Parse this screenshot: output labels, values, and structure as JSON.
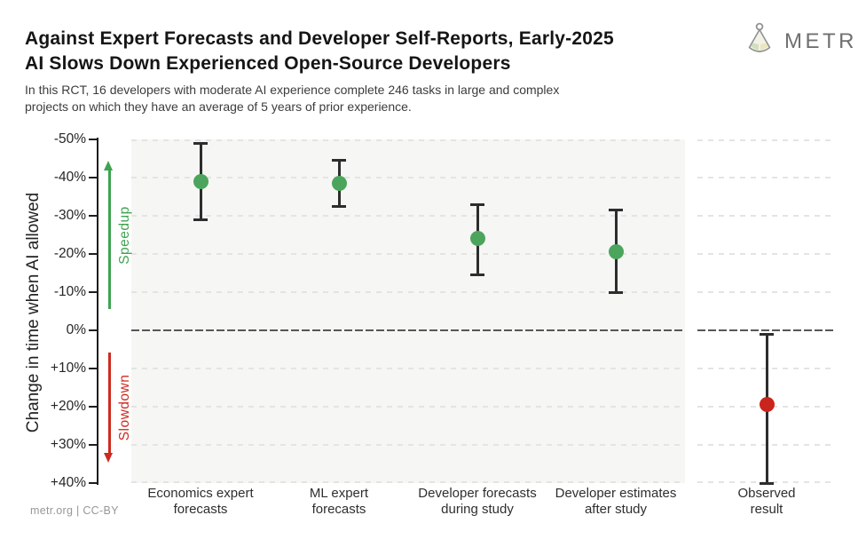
{
  "header": {
    "title_lines": [
      "Against Expert Forecasts and Developer Self-Reports, Early-2025",
      "AI Slows Down Experienced Open-Source Developers"
    ],
    "subtitle_lines": [
      "In this RCT, 16 developers with moderate AI experience complete 246 tasks in large and complex",
      "projects on which they have an average of 5 years of prior experience."
    ],
    "logo_text": "METR"
  },
  "footer": {
    "credit": "metr.org  |  CC-BY"
  },
  "chart_data": {
    "type": "scatter",
    "title": "Against Expert Forecasts and Developer Self-Reports, Early-2025 AI Slows Down Experienced Open-Source Developers",
    "ylabel": "Change in time when AI allowed",
    "unit": "% change in time when AI allowed",
    "ylim_top_to_bottom": [
      -50,
      40
    ],
    "grid": true,
    "y_ticks": [
      {
        "value": -50,
        "label": "-50%"
      },
      {
        "value": -40,
        "label": "-40%"
      },
      {
        "value": -30,
        "label": "-30%"
      },
      {
        "value": -20,
        "label": "-20%"
      },
      {
        "value": -10,
        "label": "-10%"
      },
      {
        "value": 0,
        "label": "0%"
      },
      {
        "value": 10,
        "label": "+10%"
      },
      {
        "value": 20,
        "label": "+20%"
      },
      {
        "value": 30,
        "label": "+30%"
      },
      {
        "value": 40,
        "label": "+40%"
      }
    ],
    "annotations": [
      {
        "text": "Speedup",
        "direction": "up",
        "color": "#3fa351",
        "span": [
          -5.5,
          -44.5
        ]
      },
      {
        "text": "Slowdown",
        "direction": "down",
        "color": "#cc2b21",
        "span": [
          5.8,
          34.7
        ]
      }
    ],
    "points": [
      {
        "category_lines": [
          "Economics expert",
          "forecasts"
        ],
        "value": -39,
        "ci": [
          -49,
          -29
        ],
        "color": "#4ba55c",
        "panel": "main"
      },
      {
        "category_lines": [
          "ML expert",
          "forecasts"
        ],
        "value": -38.5,
        "ci": [
          -44.5,
          -32.5
        ],
        "color": "#4ba55c",
        "panel": "main"
      },
      {
        "category_lines": [
          "Developer forecasts",
          "during study"
        ],
        "value": -24,
        "ci": [
          -33,
          -14.5
        ],
        "color": "#4ba55c",
        "panel": "main"
      },
      {
        "category_lines": [
          "Developer estimates",
          "after study"
        ],
        "value": -20.5,
        "ci": [
          -31.5,
          -10
        ],
        "color": "#4ba55c",
        "panel": "main"
      },
      {
        "category_lines": [
          "Observed",
          "result"
        ],
        "value": 19.5,
        "ci": [
          1,
          40
        ],
        "color": "#c9251d",
        "panel": "observed"
      }
    ],
    "styles": {
      "errorbar_color": "#2d2d2d",
      "grid_color": "#e4e4e2",
      "zero_line_color": "#575757",
      "main_panel_bg": "#f6f6f4",
      "observed_panel_bg": "#ffffff",
      "axis_color": "#1d1d1d"
    }
  }
}
